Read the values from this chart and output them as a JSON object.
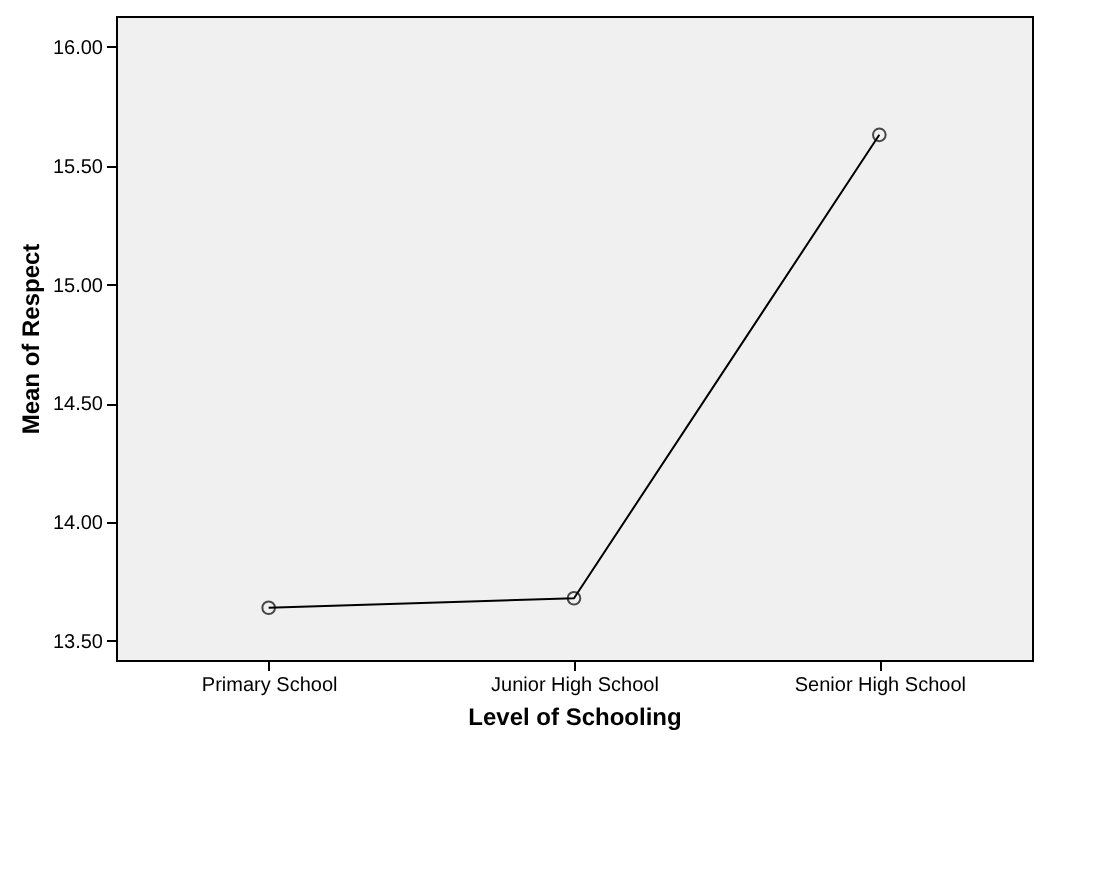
{
  "chart_data": {
    "type": "line",
    "xlabel": "Level of Schooling",
    "ylabel": "Mean of Respect",
    "categories": [
      "Primary School",
      "Junior High School",
      "Senior High School"
    ],
    "series": [
      {
        "color": "#000000",
        "values": [
          13.64,
          13.68,
          15.63
        ]
      }
    ],
    "ylim": [
      13.42,
      16.13
    ],
    "yticks": [
      {
        "value": 13.5,
        "label": "13.50"
      },
      {
        "value": 14,
        "label": "14.00"
      },
      {
        "value": 14.5,
        "label": "14.50"
      },
      {
        "value": 15,
        "label": "15.00"
      },
      {
        "value": 15.5,
        "label": "15.50"
      },
      {
        "value": 16,
        "label": "16.00"
      }
    ],
    "grid": false,
    "legend": false,
    "marker": "circle",
    "line_style": "solid"
  }
}
